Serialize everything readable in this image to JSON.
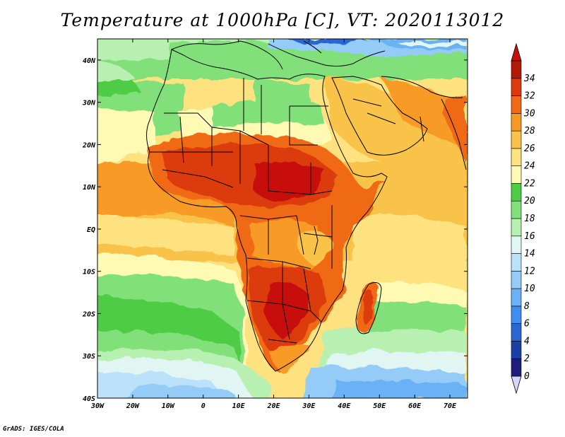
{
  "title": "Temperature at 1000hPa [C], VT: 2020113012",
  "credit": "GrADS: IGES/COLA",
  "map": {
    "lon_range": [
      -30,
      75
    ],
    "lat_range": [
      -40,
      45
    ],
    "lon_ticks": [
      {
        "value": -30,
        "label": "30W"
      },
      {
        "value": -20,
        "label": "20W"
      },
      {
        "value": -10,
        "label": "10W"
      },
      {
        "value": 0,
        "label": "0"
      },
      {
        "value": 10,
        "label": "10E"
      },
      {
        "value": 20,
        "label": "20E"
      },
      {
        "value": 30,
        "label": "30E"
      },
      {
        "value": 40,
        "label": "40E"
      },
      {
        "value": 50,
        "label": "50E"
      },
      {
        "value": 60,
        "label": "60E"
      },
      {
        "value": 70,
        "label": "70E"
      }
    ],
    "lat_ticks": [
      {
        "value": 40,
        "label": "40N"
      },
      {
        "value": 30,
        "label": "30N"
      },
      {
        "value": 20,
        "label": "20N"
      },
      {
        "value": 10,
        "label": "10N"
      },
      {
        "value": 0,
        "label": "EQ"
      },
      {
        "value": -10,
        "label": "10S"
      },
      {
        "value": -20,
        "label": "20S"
      },
      {
        "value": -30,
        "label": "30S"
      },
      {
        "value": -40,
        "label": "40S"
      }
    ]
  },
  "colorbar": {
    "levels": [
      "0",
      "2",
      "4",
      "6",
      "8",
      "10",
      "12",
      "14",
      "16",
      "18",
      "20",
      "22",
      "24",
      "26",
      "28",
      "30",
      "32",
      "34"
    ],
    "colors": [
      "#1e1e7a",
      "#1c3fa5",
      "#2a66d2",
      "#3e8ef0",
      "#6ab1f5",
      "#95cbf7",
      "#bce1fa",
      "#e1f6f2",
      "#b7f0b0",
      "#82e07a",
      "#4fcc45",
      "#fefab4",
      "#fde27f",
      "#f9c24a",
      "#f79a25",
      "#f06a15",
      "#dc3a0c",
      "#b01808"
    ],
    "under_color": "#d8d4fb",
    "over_color": "#c80e0a"
  }
}
